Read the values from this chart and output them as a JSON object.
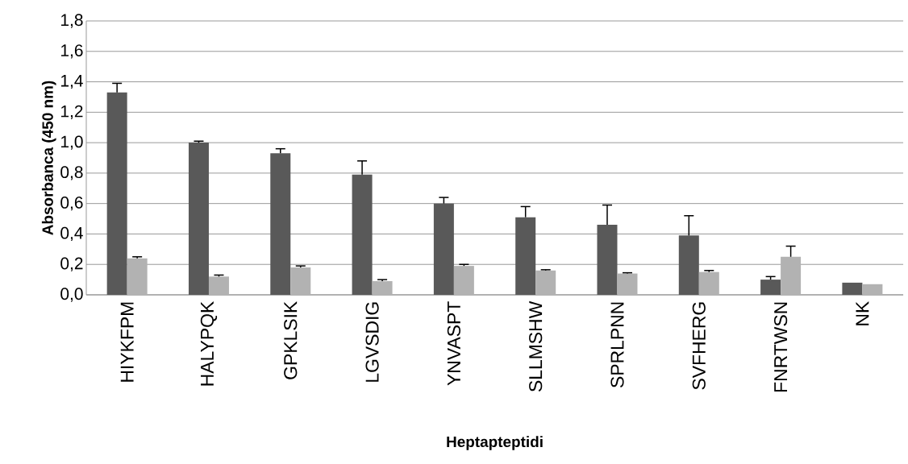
{
  "chart_data": {
    "type": "bar",
    "xlabel": "Heptapteptidi",
    "ylabel": "Absorbanca  (450 nm)",
    "categories": [
      "HIYKFPM",
      "HALYPQK",
      "GPKLSIK",
      "LGVSDIG",
      "YNVASPT",
      "SLLMSHW",
      "SPRLPNN",
      "SVFHERG",
      "FNRTWSN",
      "NK"
    ],
    "series": [
      {
        "color": "#595959",
        "values": [
          1.33,
          1.0,
          0.93,
          0.79,
          0.6,
          0.51,
          0.46,
          0.39,
          0.1,
          0.08
        ],
        "errors": [
          [
            1.33,
            1.39
          ],
          [
            1.0,
            1.01
          ],
          [
            0.93,
            0.96
          ],
          [
            0.79,
            0.88
          ],
          [
            0.6,
            0.64
          ],
          [
            0.51,
            0.58
          ],
          [
            0.46,
            0.59
          ],
          [
            0.39,
            0.52
          ],
          [
            0.1,
            0.12
          ],
          null
        ]
      },
      {
        "color": "#b2b2b2",
        "values": [
          0.24,
          0.12,
          0.18,
          0.09,
          0.19,
          0.16,
          0.14,
          0.15,
          0.25,
          0.07
        ],
        "errors": [
          [
            0.24,
            0.25
          ],
          [
            0.12,
            0.13
          ],
          [
            0.18,
            0.19
          ],
          [
            0.09,
            0.1
          ],
          [
            0.19,
            0.2
          ],
          [
            0.16,
            0.165
          ],
          [
            0.14,
            0.145
          ],
          [
            0.15,
            0.16
          ],
          [
            0.25,
            0.32
          ],
          null
        ]
      }
    ],
    "ylim": [
      0,
      1.8
    ],
    "yticks": [
      {
        "value": 0,
        "label": "0,0"
      },
      {
        "value": 0.2,
        "label": "0,2"
      },
      {
        "value": 0.4,
        "label": "0,4"
      },
      {
        "value": 0.6,
        "label": "0,6"
      },
      {
        "value": 0.8,
        "label": "0,8"
      },
      {
        "value": 1.0,
        "label": "1,0"
      },
      {
        "value": 1.2,
        "label": "1,2"
      },
      {
        "value": 1.4,
        "label": "1,4"
      },
      {
        "value": 1.6,
        "label": "1,6"
      },
      {
        "value": 1.8,
        "label": "1,8"
      }
    ],
    "grid": "y",
    "legend": false
  }
}
